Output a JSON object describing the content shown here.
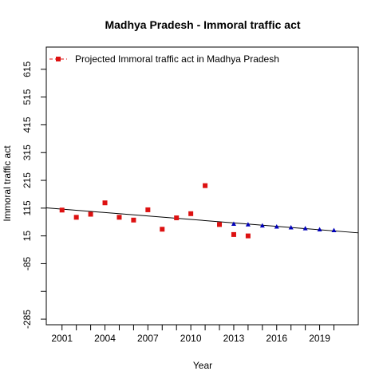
{
  "chart_data": {
    "type": "scatter",
    "title": "Madhya Pradesh  -  Immoral traffic act",
    "xlabel": "Year",
    "ylabel": "Immoral traffic act",
    "xlim": [
      1999.9,
      2021.7
    ],
    "ylim": [
      -305,
      695
    ],
    "x_ticks": [
      2001,
      2004,
      2007,
      2010,
      2013,
      2016,
      2019
    ],
    "x_tick_labels": [
      "2001",
      "2004",
      "2007",
      "2010",
      "2013",
      "2016",
      "2019"
    ],
    "x_minor_ticks": [
      2002,
      2003,
      2005,
      2006,
      2008,
      2009,
      2011,
      2012,
      2014,
      2015,
      2017,
      2018,
      2020
    ],
    "y_ticks": [
      -285,
      -185,
      -85,
      15,
      115,
      215,
      315,
      415,
      515,
      615
    ],
    "y_tick_labels": [
      "-285",
      "",
      "-85",
      "15",
      "115",
      "215",
      "315",
      "415",
      "515",
      "615"
    ],
    "legend": {
      "position": "top-left",
      "label": "Projected  Immoral traffic act  in  Madhya Pradesh"
    },
    "colors": {
      "observed": "#dd1111",
      "projected": "#0000bb",
      "trend": "#000000"
    },
    "series": [
      {
        "marker": "square",
        "x": [
          2001,
          2002,
          2003,
          2004,
          2005,
          2006,
          2007,
          2008,
          2009,
          2010,
          2011,
          2012,
          2013,
          2014
        ],
        "y": [
          108,
          82,
          93,
          134,
          82,
          72,
          109,
          39,
          80,
          95,
          196,
          56,
          20,
          15
        ]
      },
      {
        "marker": "triangle",
        "x": [
          2013,
          2014,
          2015,
          2016,
          2017,
          2018,
          2019,
          2020
        ],
        "y": [
          57,
          55,
          51,
          47,
          44,
          41,
          37,
          34
        ]
      }
    ],
    "trend_line": {
      "x": [
        1999.9,
        2021.7
      ],
      "y": [
        116,
        26
      ]
    }
  }
}
